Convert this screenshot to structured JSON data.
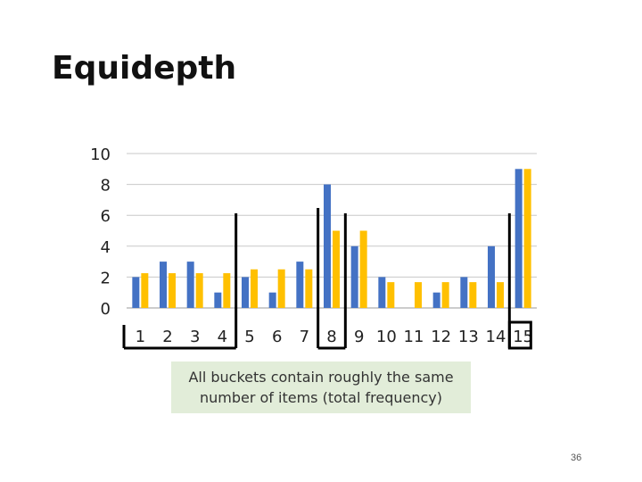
{
  "slide": {
    "title": "Equidepth",
    "caption": "All buckets contain roughly the same number of items (total frequency)",
    "page_number": "36"
  },
  "chart_data": {
    "type": "bar",
    "categories": [
      "1",
      "2",
      "3",
      "4",
      "5",
      "6",
      "7",
      "8",
      "9",
      "10",
      "11",
      "12",
      "13",
      "14",
      "15"
    ],
    "series": [
      {
        "values": [
          2,
          3,
          3,
          1,
          2,
          1,
          3,
          8,
          4,
          2,
          0,
          1,
          2,
          4,
          9
        ],
        "color": "#4472c4"
      },
      {
        "values": [
          2.25,
          2.25,
          2.25,
          2.25,
          2.5,
          2.5,
          2.5,
          5,
          5,
          1.67,
          1.67,
          1.67,
          1.67,
          1.67,
          9
        ],
        "color": "#ffc000"
      }
    ],
    "yticks": [
      0,
      2,
      4,
      6,
      8,
      10
    ],
    "ylim": [
      0,
      10
    ],
    "grid": true,
    "legend": "none",
    "bucket_boundaries_after": [
      4,
      7,
      8,
      14
    ],
    "bucket_frame_color": "#000000"
  }
}
